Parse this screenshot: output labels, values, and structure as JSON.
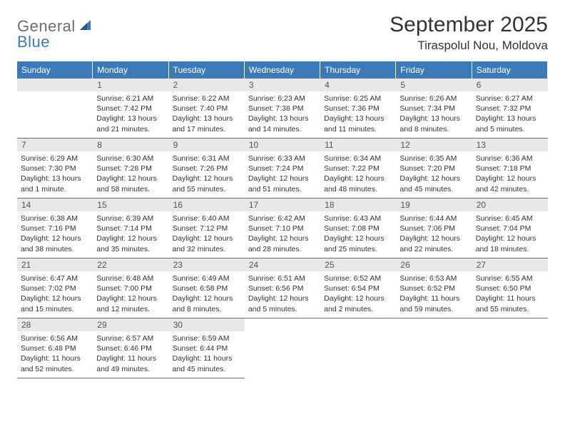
{
  "logo": {
    "text1": "General",
    "text2": "Blue"
  },
  "header": {
    "month_title": "September 2025",
    "location": "Tiraspolul Nou, Moldova"
  },
  "colors": {
    "accent": "#3a7ab8",
    "date_bar": "#e8e8e8",
    "text": "#333333",
    "logo_gray": "#6d6d6d"
  },
  "day_headers": [
    "Sunday",
    "Monday",
    "Tuesday",
    "Wednesday",
    "Thursday",
    "Friday",
    "Saturday"
  ],
  "first_weekday_index": 1,
  "days": [
    {
      "n": "1",
      "sunrise": "Sunrise: 6:21 AM",
      "sunset": "Sunset: 7:42 PM",
      "daylight": "Daylight: 13 hours and 21 minutes."
    },
    {
      "n": "2",
      "sunrise": "Sunrise: 6:22 AM",
      "sunset": "Sunset: 7:40 PM",
      "daylight": "Daylight: 13 hours and 17 minutes."
    },
    {
      "n": "3",
      "sunrise": "Sunrise: 6:23 AM",
      "sunset": "Sunset: 7:38 PM",
      "daylight": "Daylight: 13 hours and 14 minutes."
    },
    {
      "n": "4",
      "sunrise": "Sunrise: 6:25 AM",
      "sunset": "Sunset: 7:36 PM",
      "daylight": "Daylight: 13 hours and 11 minutes."
    },
    {
      "n": "5",
      "sunrise": "Sunrise: 6:26 AM",
      "sunset": "Sunset: 7:34 PM",
      "daylight": "Daylight: 13 hours and 8 minutes."
    },
    {
      "n": "6",
      "sunrise": "Sunrise: 6:27 AM",
      "sunset": "Sunset: 7:32 PM",
      "daylight": "Daylight: 13 hours and 5 minutes."
    },
    {
      "n": "7",
      "sunrise": "Sunrise: 6:29 AM",
      "sunset": "Sunset: 7:30 PM",
      "daylight": "Daylight: 13 hours and 1 minute."
    },
    {
      "n": "8",
      "sunrise": "Sunrise: 6:30 AM",
      "sunset": "Sunset: 7:28 PM",
      "daylight": "Daylight: 12 hours and 58 minutes."
    },
    {
      "n": "9",
      "sunrise": "Sunrise: 6:31 AM",
      "sunset": "Sunset: 7:26 PM",
      "daylight": "Daylight: 12 hours and 55 minutes."
    },
    {
      "n": "10",
      "sunrise": "Sunrise: 6:33 AM",
      "sunset": "Sunset: 7:24 PM",
      "daylight": "Daylight: 12 hours and 51 minutes."
    },
    {
      "n": "11",
      "sunrise": "Sunrise: 6:34 AM",
      "sunset": "Sunset: 7:22 PM",
      "daylight": "Daylight: 12 hours and 48 minutes."
    },
    {
      "n": "12",
      "sunrise": "Sunrise: 6:35 AM",
      "sunset": "Sunset: 7:20 PM",
      "daylight": "Daylight: 12 hours and 45 minutes."
    },
    {
      "n": "13",
      "sunrise": "Sunrise: 6:36 AM",
      "sunset": "Sunset: 7:18 PM",
      "daylight": "Daylight: 12 hours and 42 minutes."
    },
    {
      "n": "14",
      "sunrise": "Sunrise: 6:38 AM",
      "sunset": "Sunset: 7:16 PM",
      "daylight": "Daylight: 12 hours and 38 minutes."
    },
    {
      "n": "15",
      "sunrise": "Sunrise: 6:39 AM",
      "sunset": "Sunset: 7:14 PM",
      "daylight": "Daylight: 12 hours and 35 minutes."
    },
    {
      "n": "16",
      "sunrise": "Sunrise: 6:40 AM",
      "sunset": "Sunset: 7:12 PM",
      "daylight": "Daylight: 12 hours and 32 minutes."
    },
    {
      "n": "17",
      "sunrise": "Sunrise: 6:42 AM",
      "sunset": "Sunset: 7:10 PM",
      "daylight": "Daylight: 12 hours and 28 minutes."
    },
    {
      "n": "18",
      "sunrise": "Sunrise: 6:43 AM",
      "sunset": "Sunset: 7:08 PM",
      "daylight": "Daylight: 12 hours and 25 minutes."
    },
    {
      "n": "19",
      "sunrise": "Sunrise: 6:44 AM",
      "sunset": "Sunset: 7:06 PM",
      "daylight": "Daylight: 12 hours and 22 minutes."
    },
    {
      "n": "20",
      "sunrise": "Sunrise: 6:45 AM",
      "sunset": "Sunset: 7:04 PM",
      "daylight": "Daylight: 12 hours and 18 minutes."
    },
    {
      "n": "21",
      "sunrise": "Sunrise: 6:47 AM",
      "sunset": "Sunset: 7:02 PM",
      "daylight": "Daylight: 12 hours and 15 minutes."
    },
    {
      "n": "22",
      "sunrise": "Sunrise: 6:48 AM",
      "sunset": "Sunset: 7:00 PM",
      "daylight": "Daylight: 12 hours and 12 minutes."
    },
    {
      "n": "23",
      "sunrise": "Sunrise: 6:49 AM",
      "sunset": "Sunset: 6:58 PM",
      "daylight": "Daylight: 12 hours and 8 minutes."
    },
    {
      "n": "24",
      "sunrise": "Sunrise: 6:51 AM",
      "sunset": "Sunset: 6:56 PM",
      "daylight": "Daylight: 12 hours and 5 minutes."
    },
    {
      "n": "25",
      "sunrise": "Sunrise: 6:52 AM",
      "sunset": "Sunset: 6:54 PM",
      "daylight": "Daylight: 12 hours and 2 minutes."
    },
    {
      "n": "26",
      "sunrise": "Sunrise: 6:53 AM",
      "sunset": "Sunset: 6:52 PM",
      "daylight": "Daylight: 11 hours and 59 minutes."
    },
    {
      "n": "27",
      "sunrise": "Sunrise: 6:55 AM",
      "sunset": "Sunset: 6:50 PM",
      "daylight": "Daylight: 11 hours and 55 minutes."
    },
    {
      "n": "28",
      "sunrise": "Sunrise: 6:56 AM",
      "sunset": "Sunset: 6:48 PM",
      "daylight": "Daylight: 11 hours and 52 minutes."
    },
    {
      "n": "29",
      "sunrise": "Sunrise: 6:57 AM",
      "sunset": "Sunset: 6:46 PM",
      "daylight": "Daylight: 11 hours and 49 minutes."
    },
    {
      "n": "30",
      "sunrise": "Sunrise: 6:59 AM",
      "sunset": "Sunset: 6:44 PM",
      "daylight": "Daylight: 11 hours and 45 minutes."
    }
  ]
}
